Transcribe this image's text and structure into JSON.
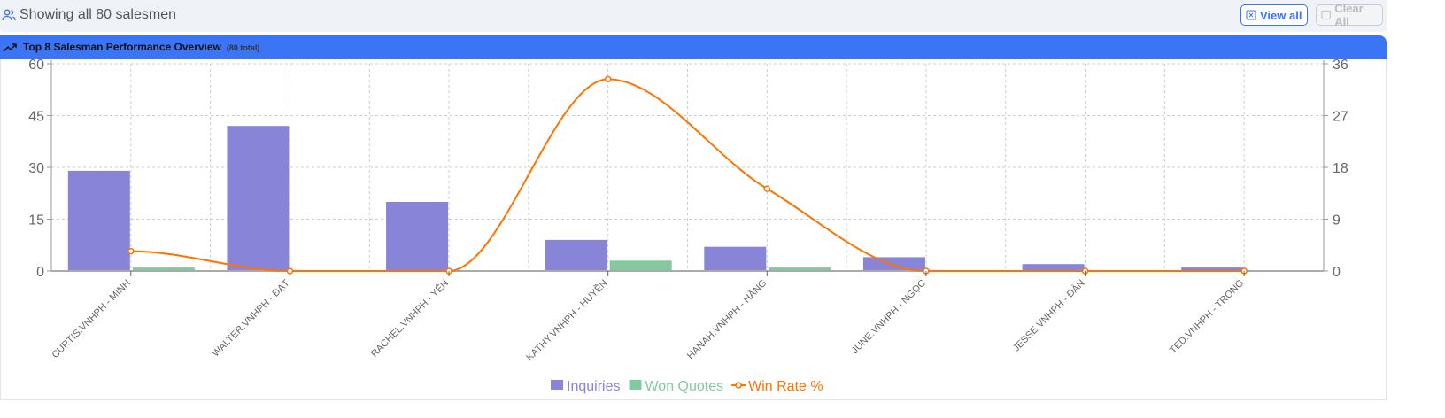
{
  "top_bar": {
    "title": "Showing all 80 salesmen",
    "view_all": "View all",
    "clear_all": "Clear All",
    "icon": "users-icon"
  },
  "panel": {
    "title": "Top 8 Salesman Performance Overview",
    "subtitle": "(80 total)",
    "icon": "trending-up-icon",
    "accent": "#3b74f5"
  },
  "chart_data": {
    "type": "bar",
    "categories": [
      "CURTIS.VNHPH - MINH",
      "WALTER.VNHPH - ĐẠT",
      "RACHEL.VNHPH - YẾN",
      "KATHY.VNHPH - HUYỀN",
      "HANAH.VNHPH - HẰNG",
      "JUNE.VNHPH - NGỌC",
      "JESSE.VNHPH - ĐÀN",
      "TED.VNHPH - TRỌNG"
    ],
    "series": [
      {
        "name": "Inquiries",
        "type": "bar",
        "axis": "left",
        "color": "#8884d8",
        "values": [
          29,
          42,
          20,
          9,
          7,
          4,
          2,
          1
        ]
      },
      {
        "name": "Won Quotes",
        "type": "bar",
        "axis": "left",
        "color": "#82ca9d",
        "values": [
          1,
          0,
          0,
          3,
          1,
          0,
          0,
          0
        ]
      },
      {
        "name": "Win Rate %",
        "type": "line",
        "axis": "right",
        "color": "#ff7300",
        "values": [
          3.45,
          0,
          0,
          33.33,
          14.29,
          0,
          0,
          0
        ]
      }
    ],
    "y_left": {
      "ylim": [
        0,
        60
      ],
      "ticks": [
        "0",
        "15",
        "30",
        "45",
        "60"
      ]
    },
    "y_right": {
      "ylim": [
        0,
        36
      ],
      "ticks": [
        "0",
        "9",
        "18",
        "27",
        "36"
      ]
    },
    "grid": true,
    "legend": "bottom"
  }
}
